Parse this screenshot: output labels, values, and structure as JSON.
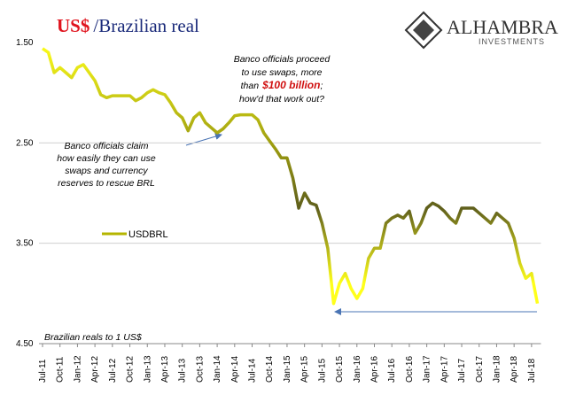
{
  "chart_data": {
    "type": "line",
    "title": {
      "left": "US$",
      "right": "/Brazilian real"
    },
    "logo": {
      "name": "ALHAMBRA",
      "sub": "INVESTMENTS"
    },
    "y_label": "Brazilian reals to 1 US$",
    "annotations": [
      {
        "lines": [
          "Banco officials claim",
          "how easily they can use",
          "swaps and currency",
          "reserves to rescue BRL"
        ]
      },
      {
        "lines": [
          [
            "Banco officials proceed"
          ],
          [
            "to use swaps, more"
          ],
          [
            "than",
            "$100 billion",
            ";"
          ],
          [
            "how'd that work out?"
          ]
        ]
      }
    ],
    "categories": [
      "Jul-11",
      null,
      null,
      "Oct-11",
      null,
      null,
      "Jan-12",
      null,
      null,
      "Apr-12",
      null,
      null,
      "Jul-12",
      null,
      null,
      "Oct-12",
      null,
      null,
      "Jan-13",
      null,
      null,
      "Apr-13",
      null,
      null,
      "Jul-13",
      null,
      null,
      "Oct-13",
      null,
      null,
      "Jan-14",
      null,
      null,
      "Apr-14",
      null,
      null,
      "Jul-14",
      null,
      null,
      "Oct-14",
      null,
      null,
      "Jan-15",
      null,
      null,
      "Apr-15",
      null,
      null,
      "Jul-15",
      null,
      null,
      "Oct-15",
      null,
      null,
      "Jan-16",
      null,
      null,
      "Apr-16",
      null,
      null,
      "Jul-16",
      null,
      null,
      "Oct-16",
      null,
      null,
      "Jan-17",
      null,
      null,
      "Apr-17",
      null,
      null,
      "Jul-17",
      null,
      null,
      "Oct-17",
      null,
      null,
      "Jan-18",
      null,
      null,
      "Apr-18",
      null,
      null,
      "Jul-18",
      null
    ],
    "series": [
      {
        "name": "USDBRL",
        "color": "#b5b500",
        "gradient": [
          "#ffff1a",
          "#9a9a10",
          "#5f5f1c",
          "#ffff1a"
        ],
        "values": [
          1.56,
          1.6,
          1.8,
          1.75,
          1.8,
          1.85,
          1.75,
          1.72,
          1.8,
          1.88,
          2.02,
          2.05,
          2.03,
          2.03,
          2.03,
          2.03,
          2.08,
          2.05,
          2.0,
          1.97,
          2.0,
          2.02,
          2.1,
          2.2,
          2.25,
          2.38,
          2.25,
          2.2,
          2.3,
          2.35,
          2.4,
          2.36,
          2.3,
          2.23,
          2.22,
          2.22,
          2.22,
          2.27,
          2.4,
          2.48,
          2.56,
          2.65,
          2.65,
          2.85,
          3.15,
          3.0,
          3.1,
          3.12,
          3.3,
          3.55,
          4.1,
          3.9,
          3.8,
          3.95,
          4.05,
          3.95,
          3.65,
          3.55,
          3.55,
          3.3,
          3.25,
          3.22,
          3.25,
          3.18,
          3.4,
          3.3,
          3.15,
          3.1,
          3.13,
          3.18,
          3.25,
          3.3,
          3.15,
          3.15,
          3.15,
          3.2,
          3.25,
          3.3,
          3.2,
          3.25,
          3.3,
          3.45,
          3.7,
          3.85,
          3.8,
          4.1
        ]
      }
    ],
    "ylim": [
      1.5,
      4.5
    ],
    "inverted": true,
    "yticks": [
      {
        "value": 1.5,
        "label": "1.50"
      },
      {
        "value": 2.5,
        "label": "2.50"
      },
      {
        "value": 3.5,
        "label": "3.50"
      },
      {
        "value": 4.5,
        "label": "4.50"
      }
    ],
    "grid": true
  }
}
